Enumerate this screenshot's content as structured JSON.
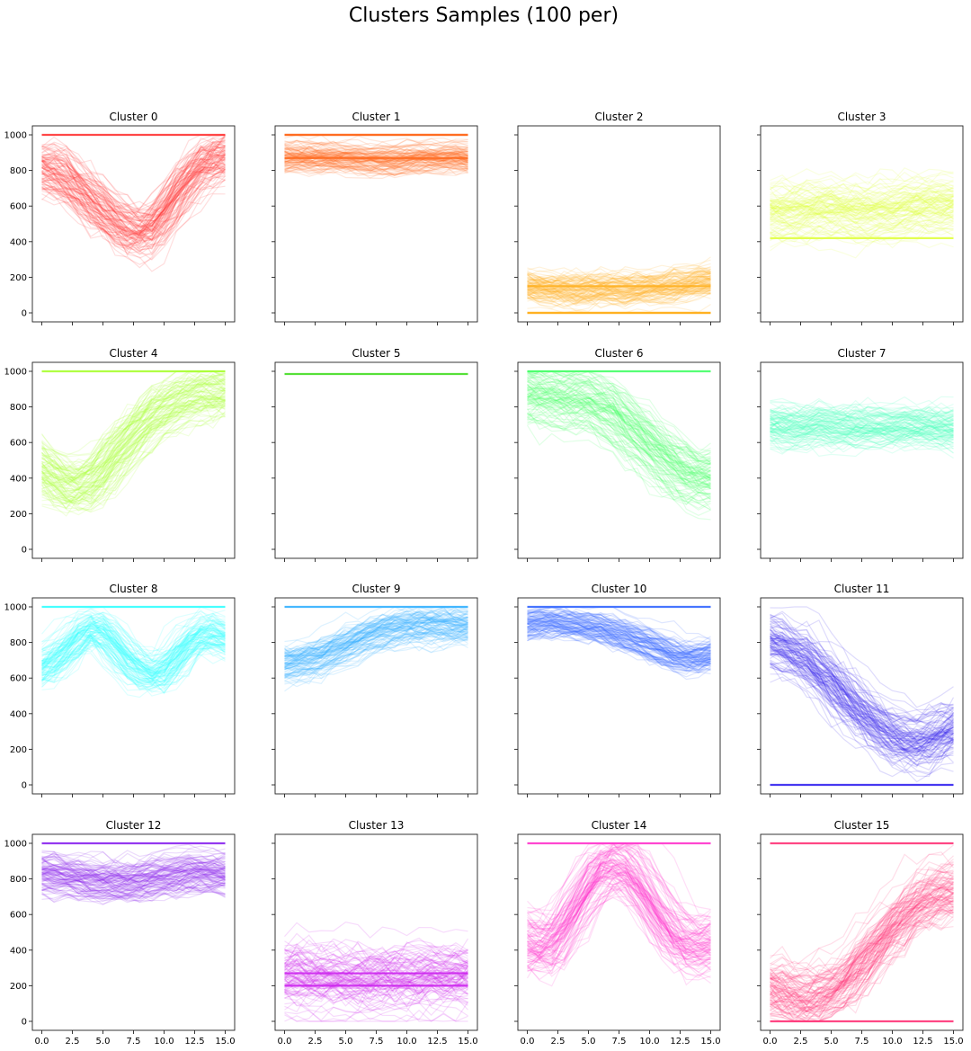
{
  "figure_title": "Clusters Samples (100 per)",
  "x_tick_labels": [
    "0.0",
    "2.5",
    "5.0",
    "7.5",
    "10.0",
    "12.5",
    "15.0"
  ],
  "y_tick_labels": [
    "0",
    "200",
    "400",
    "600",
    "800",
    "1000"
  ],
  "chart_data": {
    "type": "line",
    "title": "Clusters Samples (100 per)",
    "layout": "4x4 grid of subplots, shared x and y axes",
    "samples_per_cluster": 100,
    "x": [
      0,
      1,
      2,
      3,
      4,
      5,
      6,
      7,
      8,
      9,
      10,
      11,
      12,
      13,
      14,
      15
    ],
    "xlim": [
      0,
      15
    ],
    "ylim": [
      0,
      1000
    ],
    "xticks": [
      0.0,
      2.5,
      5.0,
      7.5,
      10.0,
      12.5,
      15.0
    ],
    "yticks": [
      0,
      200,
      400,
      600,
      800,
      1000
    ],
    "clusters": [
      {
        "title": "Cluster 0",
        "color": "#ff3333",
        "profile": [
          820,
          800,
          760,
          700,
          640,
          580,
          520,
          470,
          440,
          470,
          560,
          660,
          760,
          830,
          860,
          880
        ],
        "spread": 110,
        "flat_lines": [
          1000
        ]
      },
      {
        "title": "Cluster 1",
        "color": "#ff6a1f",
        "profile": [
          880,
          890,
          880,
          885,
          880,
          880,
          875,
          870,
          870,
          870,
          875,
          880,
          880,
          885,
          885,
          880
        ],
        "spread": 60,
        "flat_lines": [
          1000,
          1000,
          870
        ]
      },
      {
        "title": "Cluster 2",
        "color": "#ffb020",
        "profile": [
          150,
          140,
          130,
          130,
          125,
          130,
          135,
          130,
          130,
          135,
          140,
          140,
          150,
          160,
          170,
          180
        ],
        "spread": 70,
        "flat_lines": [
          0,
          0,
          150
        ]
      },
      {
        "title": "Cluster 3",
        "color": "#e0ff40",
        "profile": [
          560,
          560,
          560,
          570,
          580,
          580,
          570,
          560,
          560,
          560,
          570,
          580,
          590,
          600,
          600,
          600
        ],
        "spread": 110,
        "flat_lines": [
          420
        ]
      },
      {
        "title": "Cluster 4",
        "color": "#a8ff30",
        "profile": [
          460,
          400,
          360,
          350,
          380,
          440,
          520,
          600,
          680,
          740,
          790,
          830,
          860,
          870,
          880,
          880
        ],
        "spread": 110,
        "flat_lines": [
          1000
        ]
      },
      {
        "title": "Cluster 5",
        "color": "#44dd22",
        "profile": [
          985,
          985,
          985,
          985,
          985,
          985,
          985,
          985,
          985,
          985,
          985,
          985,
          985,
          985,
          985,
          985
        ],
        "spread": 0,
        "flat_lines": [
          985
        ]
      },
      {
        "title": "Cluster 6",
        "color": "#44ff66",
        "profile": [
          880,
          860,
          850,
          840,
          840,
          830,
          800,
          760,
          700,
          640,
          580,
          520,
          460,
          420,
          400,
          400
        ],
        "spread": 110,
        "flat_lines": [
          1000
        ]
      },
      {
        "title": "Cluster 7",
        "color": "#44ffbb",
        "profile": [
          700,
          690,
          680,
          690,
          700,
          690,
          680,
          680,
          690,
          690,
          680,
          690,
          690,
          690,
          680,
          680
        ],
        "spread": 90,
        "flat_lines": []
      },
      {
        "title": "Cluster 8",
        "color": "#33ffff",
        "profile": [
          660,
          700,
          760,
          840,
          880,
          860,
          780,
          700,
          640,
          620,
          640,
          720,
          800,
          850,
          850,
          820
        ],
        "spread": 90,
        "flat_lines": [
          1000
        ]
      },
      {
        "title": "Cluster 9",
        "color": "#33b0ff",
        "profile": [
          680,
          700,
          710,
          730,
          760,
          790,
          820,
          850,
          870,
          890,
          900,
          900,
          910,
          910,
          900,
          900
        ],
        "spread": 80,
        "flat_lines": [
          1000
        ]
      },
      {
        "title": "Cluster 10",
        "color": "#3366ff",
        "profile": [
          910,
          920,
          920,
          920,
          910,
          900,
          890,
          870,
          850,
          830,
          800,
          770,
          740,
          720,
          720,
          740
        ],
        "spread": 70,
        "flat_lines": [
          1000
        ]
      },
      {
        "title": "Cluster 11",
        "color": "#3322ee",
        "profile": [
          820,
          800,
          760,
          720,
          660,
          590,
          520,
          450,
          390,
          330,
          290,
          260,
          250,
          260,
          290,
          330
        ],
        "spread": 120,
        "flat_lines": [
          0
        ]
      },
      {
        "title": "Cluster 12",
        "color": "#8822ee",
        "profile": [
          840,
          830,
          820,
          810,
          800,
          790,
          790,
          790,
          800,
          810,
          820,
          830,
          840,
          840,
          840,
          830
        ],
        "spread": 80,
        "flat_lines": [
          1000
        ]
      },
      {
        "title": "Cluster 13",
        "color": "#cc22ee",
        "profile": [
          260,
          260,
          250,
          250,
          250,
          240,
          240,
          240,
          250,
          250,
          250,
          260,
          260,
          260,
          260,
          260
        ],
        "spread": 140,
        "flat_lines": [
          270,
          200
        ]
      },
      {
        "title": "Cluster 14",
        "color": "#ff33cc",
        "profile": [
          440,
          420,
          430,
          520,
          640,
          760,
          850,
          880,
          860,
          780,
          680,
          570,
          480,
          430,
          420,
          440
        ],
        "spread": 120,
        "flat_lines": [
          1000
        ]
      },
      {
        "title": "Cluster 15",
        "color": "#ff3377",
        "profile": [
          180,
          160,
          140,
          130,
          140,
          170,
          220,
          290,
          370,
          450,
          530,
          600,
          660,
          700,
          720,
          730
        ],
        "spread": 130,
        "flat_lines": [
          0,
          1000
        ]
      }
    ]
  }
}
